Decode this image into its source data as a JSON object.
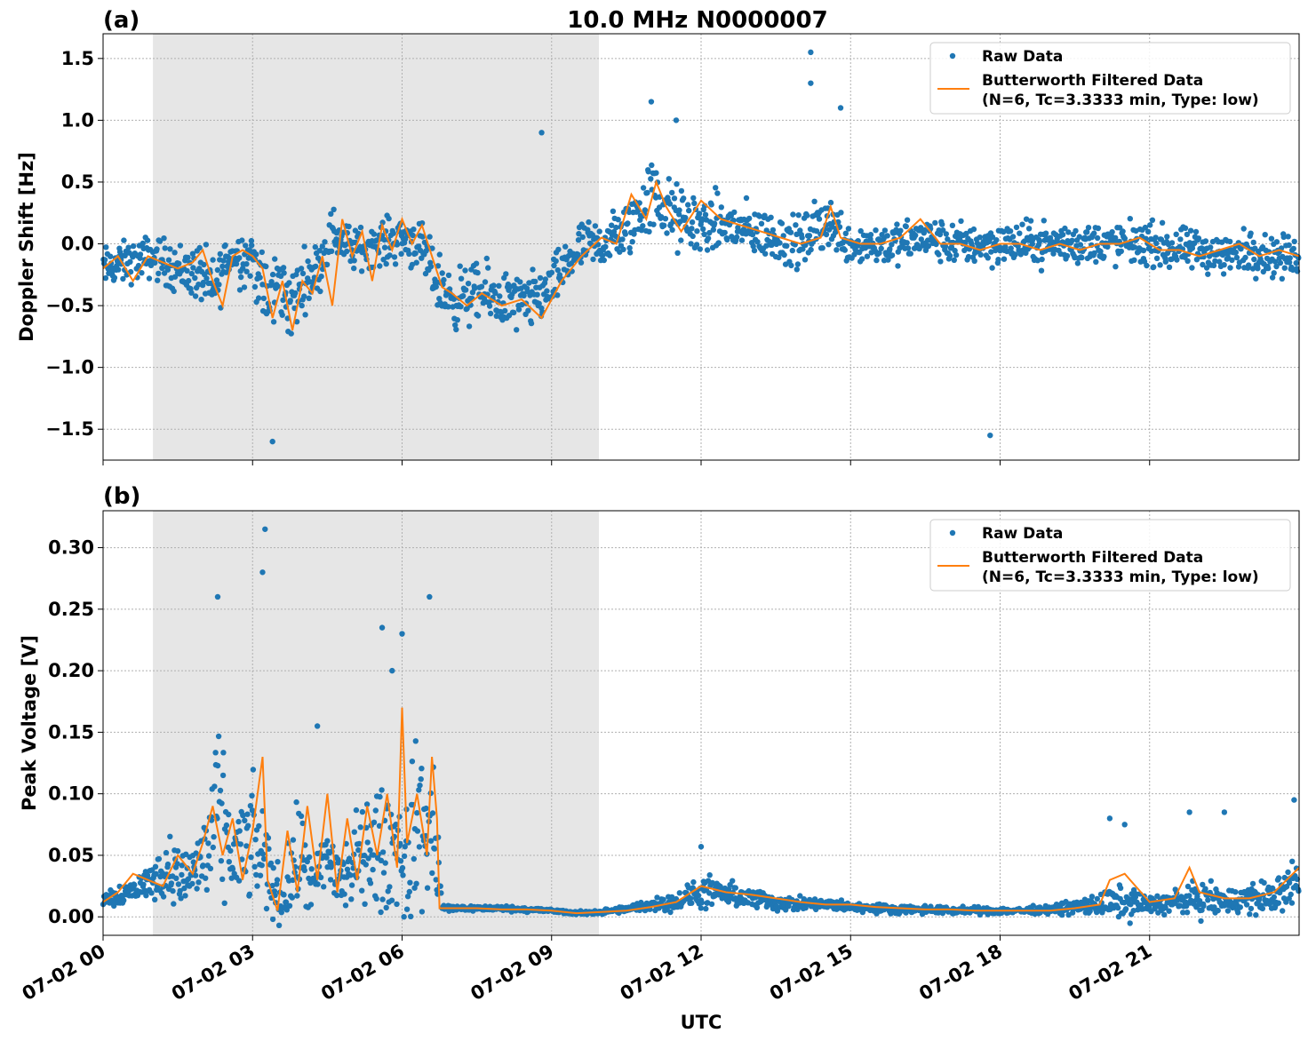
{
  "figure": {
    "title": "10.0 MHz N0000007",
    "xlabel": "UTC",
    "x_tick_labels": [
      "07-02 00",
      "07-02 03",
      "07-02 06",
      "07-02 09",
      "07-02 12",
      "07-02 15",
      "07-02 18",
      "07-02 21"
    ]
  },
  "colors": {
    "raw": "#1f77b4",
    "filtered": "#ff7f0e",
    "shade": "#e6e6e6",
    "grid": "#b0b0b0"
  },
  "chart_data": [
    {
      "panel": "(a)",
      "type": "scatter",
      "title": "10.0 MHz N0000007",
      "xlabel": "",
      "ylabel": "Doppler Shift [Hz]",
      "x_unit": "hours UTC on 07-02",
      "xlim": [
        0,
        24
      ],
      "ylim": [
        -1.75,
        1.7
      ],
      "y_ticks": [
        -1.5,
        -1.0,
        -0.5,
        0.0,
        0.5,
        1.0,
        1.5
      ],
      "y_tick_labels": [
        "−1.5",
        "−1.0",
        "−0.5",
        "0.0",
        "0.5",
        "1.0",
        "1.5"
      ],
      "grid": true,
      "legend_position": "top-right",
      "shaded_region": [
        1.0,
        9.95
      ],
      "series": [
        {
          "name": "Raw Data",
          "style": "scatter",
          "x": [
            0,
            0.5,
            1,
            1.5,
            2,
            2.2,
            2.5,
            3,
            3.3,
            3.5,
            3.8,
            4,
            4.3,
            4.6,
            5,
            5.5,
            6,
            6.3,
            6.7,
            7,
            7.5,
            8,
            8.5,
            9,
            9.5,
            10,
            10.5,
            11,
            11.5,
            12,
            12.5,
            13,
            13.5,
            14,
            14.5,
            15,
            15.5,
            16,
            16.5,
            17,
            17.5,
            18,
            18.5,
            19,
            19.5,
            20,
            20.5,
            21,
            21.5,
            22,
            22.5,
            23,
            23.5,
            24
          ],
          "y_center": [
            -0.2,
            -0.15,
            -0.1,
            -0.2,
            -0.25,
            -0.4,
            -0.1,
            -0.1,
            -0.5,
            -0.3,
            -0.5,
            -0.3,
            -0.2,
            0.1,
            -0.05,
            0.0,
            0.05,
            0.0,
            -0.3,
            -0.45,
            -0.4,
            -0.45,
            -0.5,
            -0.35,
            -0.05,
            0.0,
            0.1,
            0.4,
            0.2,
            0.15,
            0.15,
            0.1,
            0.05,
            0.0,
            0.2,
            0.0,
            0.0,
            0.0,
            0.05,
            0.0,
            0.0,
            0.0,
            0.0,
            0.0,
            0.0,
            0.0,
            0.0,
            0.0,
            -0.05,
            -0.05,
            -0.1,
            -0.05,
            -0.1,
            -0.1
          ],
          "y_spread": [
            0.25,
            0.25,
            0.25,
            0.3,
            0.35,
            0.4,
            0.3,
            0.35,
            0.5,
            0.4,
            0.45,
            0.35,
            0.3,
            0.3,
            0.25,
            0.25,
            0.3,
            0.3,
            0.35,
            0.35,
            0.35,
            0.35,
            0.35,
            0.3,
            0.3,
            0.3,
            0.35,
            0.45,
            0.4,
            0.35,
            0.35,
            0.3,
            0.3,
            0.3,
            0.35,
            0.25,
            0.25,
            0.25,
            0.25,
            0.25,
            0.25,
            0.25,
            0.25,
            0.25,
            0.25,
            0.25,
            0.25,
            0.25,
            0.25,
            0.25,
            0.25,
            0.25,
            0.25,
            0.25
          ],
          "outliers": [
            [
              3.4,
              -1.6
            ],
            [
              14.2,
              1.55
            ],
            [
              14.2,
              1.3
            ],
            [
              17.8,
              -1.55
            ],
            [
              8.8,
              0.9
            ],
            [
              14.8,
              1.1
            ],
            [
              11.0,
              1.15
            ],
            [
              11.5,
              1.0
            ]
          ]
        },
        {
          "name": "Butterworth Filtered Data\n(N=6, Tc=3.3333 min, Type: low)",
          "style": "line",
          "x": [
            0,
            0.3,
            0.6,
            0.9,
            1.2,
            1.5,
            1.8,
            2.0,
            2.2,
            2.4,
            2.6,
            2.8,
            3.0,
            3.2,
            3.4,
            3.6,
            3.8,
            4.0,
            4.2,
            4.4,
            4.6,
            4.8,
            5.0,
            5.2,
            5.4,
            5.6,
            5.8,
            6.0,
            6.2,
            6.4,
            6.6,
            6.8,
            7.0,
            7.3,
            7.6,
            8.0,
            8.4,
            8.8,
            9.2,
            9.6,
            10.0,
            10.3,
            10.6,
            10.9,
            11.1,
            11.3,
            11.6,
            12.0,
            12.4,
            12.8,
            13.2,
            13.6,
            14.0,
            14.4,
            14.6,
            14.8,
            15.2,
            15.6,
            16.0,
            16.4,
            16.8,
            17.2,
            17.6,
            18.0,
            18.4,
            18.8,
            19.2,
            19.6,
            20.0,
            20.4,
            20.8,
            21.2,
            21.6,
            22.0,
            22.4,
            22.8,
            23.2,
            23.6,
            24.0
          ],
          "y": [
            -0.2,
            -0.1,
            -0.3,
            -0.1,
            -0.15,
            -0.2,
            -0.15,
            -0.05,
            -0.3,
            -0.5,
            -0.1,
            -0.05,
            -0.1,
            -0.2,
            -0.6,
            -0.3,
            -0.7,
            -0.3,
            -0.4,
            -0.1,
            -0.5,
            0.2,
            -0.1,
            0.1,
            -0.3,
            0.15,
            -0.05,
            0.2,
            0.0,
            0.15,
            -0.1,
            -0.35,
            -0.4,
            -0.5,
            -0.4,
            -0.5,
            -0.45,
            -0.6,
            -0.3,
            -0.1,
            0.05,
            0.0,
            0.4,
            0.2,
            0.5,
            0.3,
            0.1,
            0.35,
            0.2,
            0.15,
            0.1,
            0.05,
            0.0,
            0.05,
            0.3,
            0.05,
            0.0,
            0.0,
            0.05,
            0.2,
            0.0,
            0.0,
            -0.05,
            0.0,
            0.0,
            -0.05,
            0.0,
            -0.05,
            0.0,
            0.0,
            0.05,
            -0.05,
            -0.05,
            -0.1,
            -0.05,
            0.0,
            -0.1,
            -0.05,
            -0.1
          ]
        }
      ]
    },
    {
      "panel": "(b)",
      "type": "scatter",
      "title": "",
      "xlabel": "UTC",
      "ylabel": "Peak Voltage [V]",
      "x_unit": "hours UTC on 07-02",
      "xlim": [
        0,
        24
      ],
      "ylim": [
        -0.015,
        0.33
      ],
      "y_ticks": [
        0.0,
        0.05,
        0.1,
        0.15,
        0.2,
        0.25,
        0.3
      ],
      "y_tick_labels": [
        "0.00",
        "0.05",
        "0.10",
        "0.15",
        "0.20",
        "0.25",
        "0.30"
      ],
      "grid": true,
      "legend_position": "top-right",
      "shaded_region": [
        1.0,
        9.95
      ],
      "series": [
        {
          "name": "Raw Data",
          "style": "scatter",
          "x": [
            0,
            0.5,
            1,
            1.3,
            1.6,
            2,
            2.3,
            2.6,
            3,
            3.2,
            3.4,
            3.6,
            3.8,
            4.0,
            4.2,
            4.5,
            4.8,
            5.0,
            5.3,
            5.6,
            5.9,
            6.1,
            6.3,
            6.5,
            6.7,
            6.8,
            7,
            7.5,
            8,
            8.5,
            9,
            9.5,
            10,
            10.5,
            11,
            11.5,
            12,
            12.5,
            13,
            13.5,
            14,
            14.5,
            15,
            15.5,
            16,
            16.5,
            17,
            17.5,
            18,
            18.5,
            19,
            19.5,
            20,
            20.5,
            21,
            21.5,
            22,
            22.5,
            23,
            23.5,
            24
          ],
          "y_center": [
            0.015,
            0.02,
            0.03,
            0.04,
            0.03,
            0.045,
            0.08,
            0.05,
            0.06,
            0.05,
            0.03,
            0.01,
            0.04,
            0.05,
            0.02,
            0.05,
            0.03,
            0.04,
            0.06,
            0.05,
            0.06,
            0.04,
            0.08,
            0.07,
            0.06,
            0.007,
            0.007,
            0.007,
            0.007,
            0.006,
            0.005,
            0.003,
            0.004,
            0.006,
            0.01,
            0.012,
            0.02,
            0.018,
            0.015,
            0.012,
            0.01,
            0.01,
            0.008,
            0.007,
            0.006,
            0.006,
            0.005,
            0.005,
            0.005,
            0.005,
            0.006,
            0.008,
            0.01,
            0.012,
            0.01,
            0.012,
            0.015,
            0.012,
            0.015,
            0.015,
            0.03
          ],
          "y_spread": [
            0.01,
            0.015,
            0.02,
            0.04,
            0.03,
            0.06,
            0.1,
            0.05,
            0.07,
            0.06,
            0.05,
            0.02,
            0.06,
            0.06,
            0.03,
            0.05,
            0.05,
            0.05,
            0.06,
            0.08,
            0.07,
            0.08,
            0.1,
            0.1,
            0.09,
            0.004,
            0.004,
            0.003,
            0.003,
            0.003,
            0.002,
            0.002,
            0.003,
            0.004,
            0.008,
            0.01,
            0.02,
            0.015,
            0.012,
            0.01,
            0.008,
            0.007,
            0.006,
            0.005,
            0.005,
            0.005,
            0.004,
            0.004,
            0.004,
            0.004,
            0.005,
            0.008,
            0.015,
            0.02,
            0.01,
            0.015,
            0.02,
            0.015,
            0.02,
            0.02,
            0.03
          ],
          "outliers": [
            [
              3.25,
              0.315
            ],
            [
              2.3,
              0.26
            ],
            [
              6.55,
              0.26
            ],
            [
              5.6,
              0.235
            ],
            [
              6.0,
              0.23
            ],
            [
              5.8,
              0.2
            ],
            [
              3.2,
              0.28
            ],
            [
              4.3,
              0.155
            ],
            [
              12.0,
              0.057
            ],
            [
              20.2,
              0.08
            ],
            [
              20.5,
              0.075
            ],
            [
              21.8,
              0.085
            ],
            [
              22.5,
              0.085
            ],
            [
              23.9,
              0.095
            ]
          ]
        },
        {
          "name": "Butterworth Filtered Data\n(N=6, Tc=3.3333 min, Type: low)",
          "style": "line",
          "x": [
            0,
            0.3,
            0.6,
            0.9,
            1.2,
            1.5,
            1.8,
            2.0,
            2.2,
            2.4,
            2.6,
            2.8,
            3.0,
            3.2,
            3.3,
            3.5,
            3.7,
            3.9,
            4.1,
            4.3,
            4.5,
            4.7,
            4.9,
            5.1,
            5.3,
            5.5,
            5.7,
            5.9,
            6.0,
            6.1,
            6.3,
            6.5,
            6.6,
            6.7,
            6.75,
            7,
            7.5,
            8,
            8.5,
            9,
            9.5,
            10,
            10.5,
            11,
            11.5,
            12,
            12.5,
            13,
            13.5,
            14,
            14.5,
            15,
            15.5,
            16,
            16.5,
            17,
            17.5,
            18,
            18.5,
            19,
            19.5,
            20,
            20.2,
            20.5,
            21,
            21.5,
            21.8,
            22,
            22.5,
            23,
            23.5,
            24
          ],
          "y": [
            0.012,
            0.02,
            0.035,
            0.03,
            0.025,
            0.05,
            0.035,
            0.06,
            0.09,
            0.05,
            0.08,
            0.03,
            0.07,
            0.13,
            0.03,
            0.005,
            0.07,
            0.02,
            0.09,
            0.03,
            0.1,
            0.02,
            0.08,
            0.03,
            0.09,
            0.05,
            0.1,
            0.04,
            0.17,
            0.06,
            0.1,
            0.05,
            0.13,
            0.08,
            0.007,
            0.007,
            0.007,
            0.006,
            0.006,
            0.005,
            0.003,
            0.004,
            0.005,
            0.008,
            0.012,
            0.025,
            0.02,
            0.018,
            0.015,
            0.012,
            0.01,
            0.01,
            0.008,
            0.007,
            0.006,
            0.006,
            0.005,
            0.005,
            0.005,
            0.005,
            0.007,
            0.01,
            0.03,
            0.035,
            0.012,
            0.015,
            0.04,
            0.02,
            0.015,
            0.015,
            0.02,
            0.04
          ]
        }
      ]
    }
  ]
}
